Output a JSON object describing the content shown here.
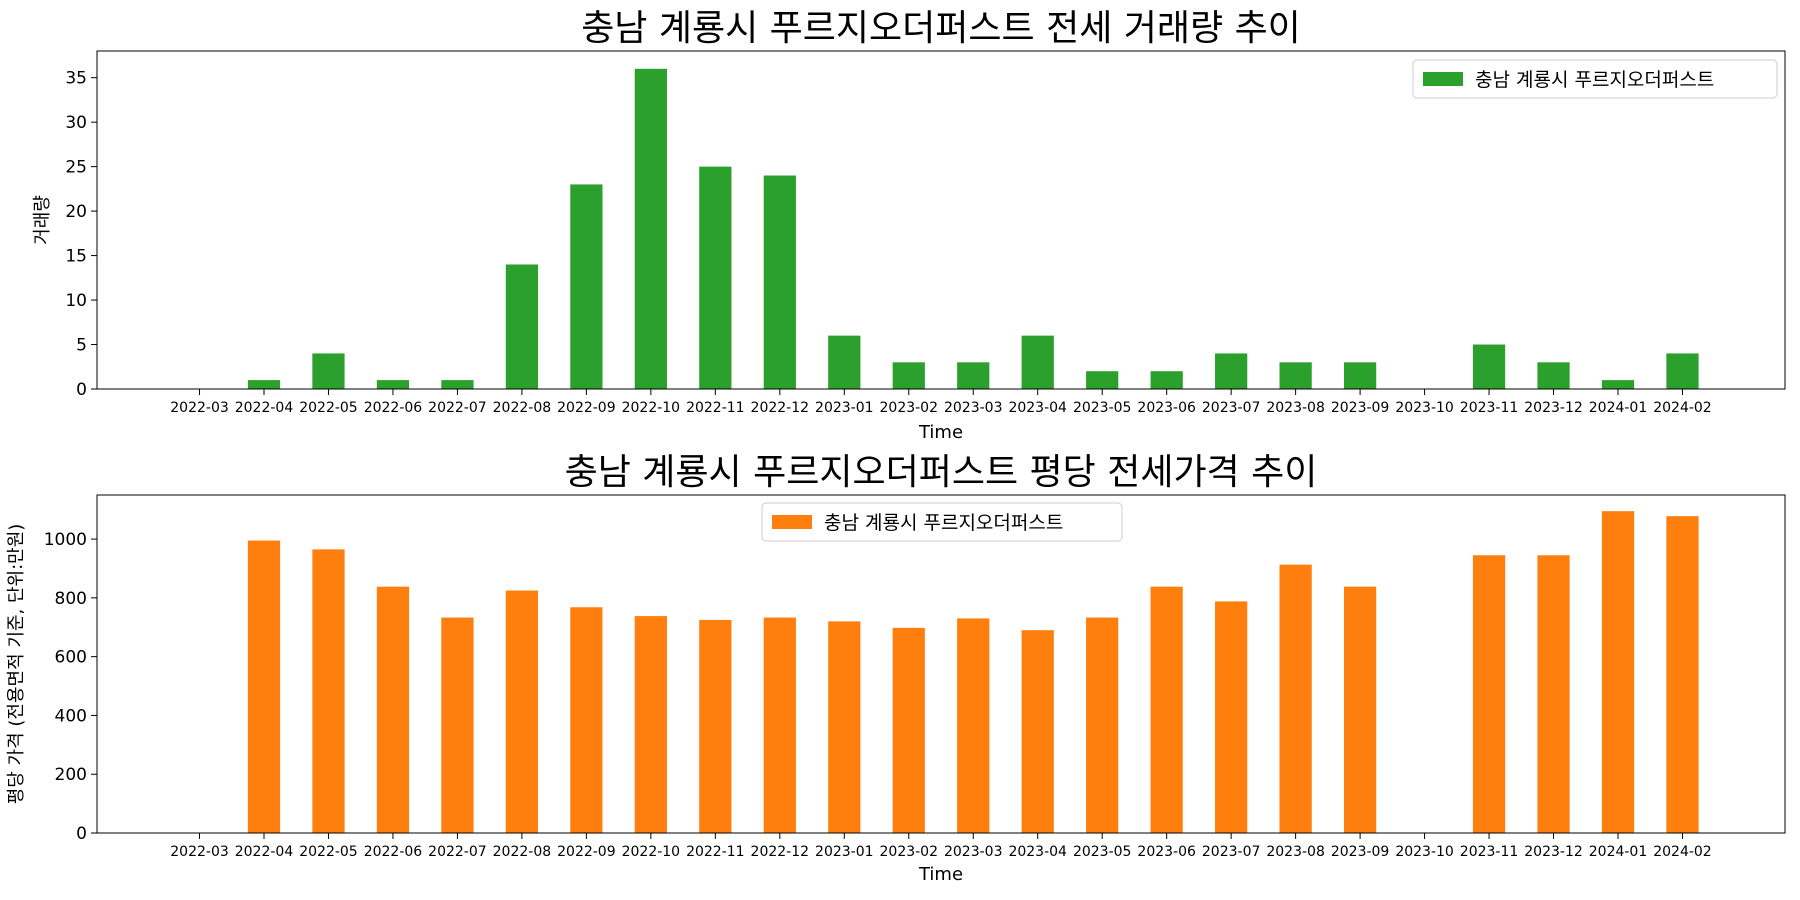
{
  "chart_data": [
    {
      "type": "bar",
      "title": "충남 계룡시 푸르지오더퍼스트 전세 거래량 추이",
      "xlabel": "Time",
      "ylabel": "거래량",
      "ylim": [
        0,
        38
      ],
      "yticks": [
        0,
        5,
        10,
        15,
        20,
        25,
        30,
        35
      ],
      "legend_placement": "top-right",
      "categories": [
        "2022-03",
        "2022-04",
        "2022-05",
        "2022-06",
        "2022-07",
        "2022-08",
        "2022-09",
        "2022-10",
        "2022-11",
        "2022-12",
        "2023-01",
        "2023-02",
        "2023-03",
        "2023-04",
        "2023-05",
        "2023-06",
        "2023-07",
        "2023-08",
        "2023-09",
        "2023-10",
        "2023-11",
        "2023-12",
        "2024-01",
        "2024-02"
      ],
      "series": [
        {
          "name": "충남 계룡시 푸르지오더퍼스트",
          "color": "#2ca02c",
          "values": [
            0,
            1,
            4,
            1,
            1,
            14,
            23,
            36,
            25,
            24,
            6,
            3,
            3,
            6,
            2,
            2,
            4,
            3,
            3,
            0,
            5,
            3,
            1,
            4
          ]
        }
      ]
    },
    {
      "type": "bar",
      "title": "충남 계룡시 푸르지오더퍼스트 평당 전세가격 추이",
      "xlabel": "Time",
      "ylabel": "평당 가격 (전용면적 기준, 단위:만원)",
      "ylim": [
        0,
        1150
      ],
      "yticks": [
        0,
        200,
        400,
        600,
        800,
        1000
      ],
      "legend_placement": "top-center",
      "categories": [
        "2022-03",
        "2022-04",
        "2022-05",
        "2022-06",
        "2022-07",
        "2022-08",
        "2022-09",
        "2022-10",
        "2022-11",
        "2022-12",
        "2023-01",
        "2023-02",
        "2023-03",
        "2023-04",
        "2023-05",
        "2023-06",
        "2023-07",
        "2023-08",
        "2023-09",
        "2023-10",
        "2023-11",
        "2023-12",
        "2024-01",
        "2024-02"
      ],
      "series": [
        {
          "name": "충남 계룡시 푸르지오더퍼스트",
          "color": "#ff7f0e",
          "values": [
            0,
            995,
            965,
            838,
            733,
            825,
            768,
            738,
            725,
            733,
            720,
            698,
            730,
            690,
            733,
            838,
            788,
            913,
            838,
            0,
            945,
            945,
            1095,
            1078
          ]
        }
      ]
    }
  ]
}
